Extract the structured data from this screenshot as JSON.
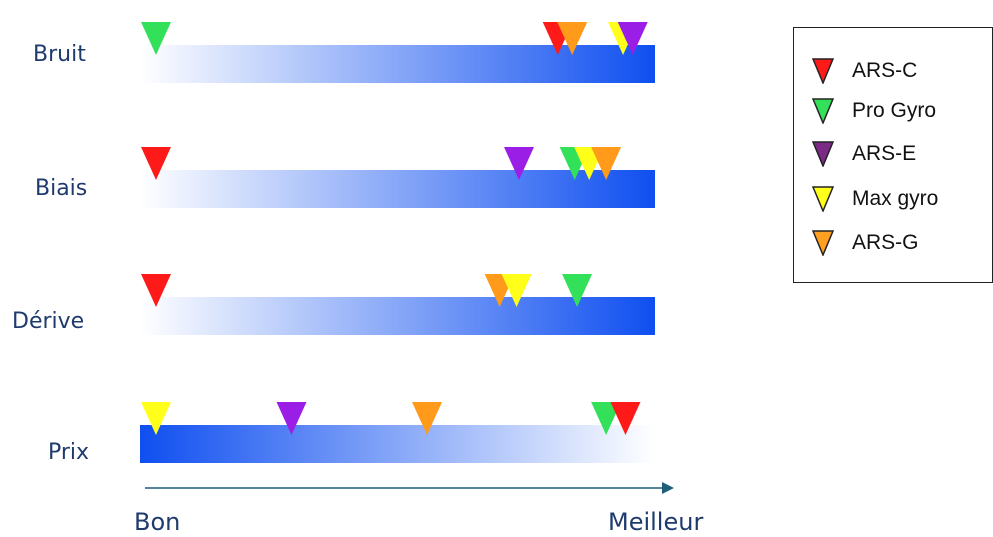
{
  "rows": [
    {
      "label": "Bruit",
      "direction": "to-right",
      "markers": [
        {
          "series": "Pro Gyro",
          "pos": 0.0
        },
        {
          "series": "ARS-C",
          "pos": 0.83
        },
        {
          "series": "ARS-G",
          "pos": 0.86
        },
        {
          "series": "Max gyro",
          "pos": 0.965
        },
        {
          "series": "ARS-E",
          "pos": 0.985
        }
      ]
    },
    {
      "label": "Biais",
      "direction": "to-right",
      "markers": [
        {
          "series": "ARS-C",
          "pos": 0.0
        },
        {
          "series": "ARS-E",
          "pos": 0.75
        },
        {
          "series": "Pro Gyro",
          "pos": 0.865
        },
        {
          "series": "Max gyro",
          "pos": 0.895
        },
        {
          "series": "ARS-G",
          "pos": 0.93
        }
      ]
    },
    {
      "label": "Dérive",
      "direction": "to-right",
      "markers": [
        {
          "series": "ARS-C",
          "pos": 0.0
        },
        {
          "series": "ARS-G",
          "pos": 0.71
        },
        {
          "series": "Max gyro",
          "pos": 0.745
        },
        {
          "series": "Pro Gyro",
          "pos": 0.87
        }
      ]
    },
    {
      "label": "Prix",
      "direction": "to-left",
      "markers": [
        {
          "series": "Max gyro",
          "pos": 0.0
        },
        {
          "series": "ARS-E",
          "pos": 0.28
        },
        {
          "series": "ARS-G",
          "pos": 0.56
        },
        {
          "series": "Pro Gyro",
          "pos": 0.93
        },
        {
          "series": "ARS-C",
          "pos": 0.97
        }
      ]
    }
  ],
  "axis": {
    "left_label": "Bon",
    "right_label": "Meilleur",
    "color": "#1f5f7a"
  },
  "legend": [
    {
      "name": "ARS-C",
      "color": "#ff1a1a"
    },
    {
      "name": "Pro Gyro",
      "color": "#33e05a"
    },
    {
      "name": "ARS-E",
      "color": "#7b2a86"
    },
    {
      "name": "Max gyro",
      "color": "#ffff1a"
    },
    {
      "name": "ARS-G",
      "color": "#ffa020"
    }
  ],
  "marker_colors": {
    "ARS-C": "#ff1a1a",
    "Pro Gyro": "#33e05a",
    "ARS-E": "#9b1ee6",
    "Max gyro": "#ffff1a",
    "ARS-G": "#ff9a1a"
  },
  "bar_colors": {
    "light": "#ffffff",
    "dark": "#0f4ff0"
  }
}
